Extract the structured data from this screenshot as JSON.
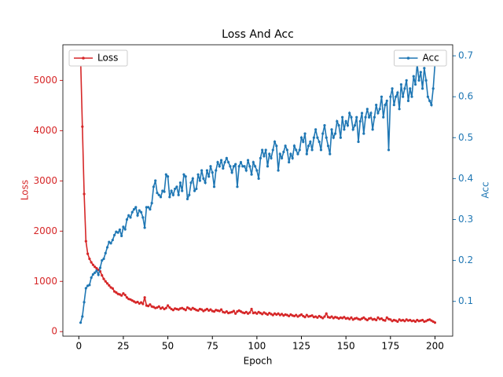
{
  "chart_data": {
    "type": "line",
    "title": "Loss And Acc",
    "x_label": "Epoch",
    "y_label": "Loss",
    "y2_label": "Acc",
    "x": [
      1,
      2,
      3,
      4,
      5,
      6,
      7,
      8,
      9,
      10,
      11,
      12,
      13,
      14,
      15,
      16,
      17,
      18,
      19,
      20,
      21,
      22,
      23,
      24,
      25,
      26,
      27,
      28,
      29,
      30,
      31,
      32,
      33,
      34,
      35,
      36,
      37,
      38,
      39,
      40,
      41,
      42,
      43,
      44,
      45,
      46,
      47,
      48,
      49,
      50,
      51,
      52,
      53,
      54,
      55,
      56,
      57,
      58,
      59,
      60,
      61,
      62,
      63,
      64,
      65,
      66,
      67,
      68,
      69,
      70,
      71,
      72,
      73,
      74,
      75,
      76,
      77,
      78,
      79,
      80,
      81,
      82,
      83,
      84,
      85,
      86,
      87,
      88,
      89,
      90,
      91,
      92,
      93,
      94,
      95,
      96,
      97,
      98,
      99,
      100,
      101,
      102,
      103,
      104,
      105,
      106,
      107,
      108,
      109,
      110,
      111,
      112,
      113,
      114,
      115,
      116,
      117,
      118,
      119,
      120,
      121,
      122,
      123,
      124,
      125,
      126,
      127,
      128,
      129,
      130,
      131,
      132,
      133,
      134,
      135,
      136,
      137,
      138,
      139,
      140,
      141,
      142,
      143,
      144,
      145,
      146,
      147,
      148,
      149,
      150,
      151,
      152,
      153,
      154,
      155,
      156,
      157,
      158,
      159,
      160,
      161,
      162,
      163,
      164,
      165,
      166,
      167,
      168,
      169,
      170,
      171,
      172,
      173,
      174,
      175,
      176,
      177,
      178,
      179,
      180,
      181,
      182,
      183,
      184,
      185,
      186,
      187,
      188,
      189,
      190,
      191,
      192,
      193,
      194,
      195,
      196,
      197,
      198,
      199,
      200
    ],
    "xlim": [
      -8.95,
      209.95
    ],
    "xticks": [
      0,
      25,
      50,
      75,
      100,
      125,
      150,
      175,
      200
    ],
    "ylim": [
      -90,
      5710
    ],
    "yticks": [
      0,
      1000,
      2000,
      3000,
      4000,
      5000
    ],
    "y2lim": [
      0.015,
      0.727
    ],
    "y2ticks": [
      0.1,
      0.2,
      0.3,
      0.4,
      0.5,
      0.6,
      0.7
    ],
    "series": [
      {
        "name": "Loss",
        "color": "#d62728",
        "legend": "upper left",
        "values": [
          5440,
          4080,
          2740,
          1800,
          1550,
          1450,
          1380,
          1330,
          1290,
          1260,
          1230,
          1200,
          1120,
          1050,
          1000,
          960,
          920,
          880,
          860,
          800,
          780,
          750,
          740,
          720,
          760,
          730,
          680,
          650,
          640,
          620,
          600,
          580,
          590,
          560,
          580,
          550,
          680,
          520,
          510,
          540,
          500,
          490,
          470,
          480,
          500,
          460,
          480,
          450,
          470,
          520,
          480,
          450,
          430,
          460,
          450,
          440,
          460,
          470,
          450,
          430,
          480,
          460,
          440,
          470,
          450,
          430,
          420,
          450,
          440,
          410,
          430,
          450,
          420,
          440,
          410,
          400,
          430,
          420,
          410,
          440,
          390,
          380,
          400,
          370,
          380,
          390,
          410,
          360,
          400,
          420,
          400,
          380,
          370,
          390,
          360,
          380,
          450,
          370,
          380,
          360,
          390,
          370,
          350,
          380,
          360,
          340,
          370,
          350,
          330,
          360,
          340,
          360,
          330,
          350,
          320,
          340,
          330,
          310,
          340,
          320,
          310,
          330,
          300,
          320,
          340,
          310,
          290,
          330,
          300,
          310,
          320,
          290,
          300,
          280,
          310,
          290,
          270,
          300,
          360,
          290,
          280,
          300,
          270,
          290,
          280,
          260,
          280,
          270,
          290,
          260,
          270,
          250,
          280,
          240,
          260,
          270,
          250,
          240,
          260,
          280,
          250,
          230,
          260,
          270,
          240,
          250,
          230,
          280,
          250,
          260,
          230,
          220,
          280,
          250,
          240,
          210,
          230,
          220,
          200,
          240,
          220,
          230,
          210,
          240,
          220,
          230,
          210,
          220,
          200,
          230,
          210,
          220,
          230,
          200,
          210,
          230,
          240,
          220,
          200,
          180
        ]
      },
      {
        "name": "Acc",
        "color": "#1f77b4",
        "axis": "y2",
        "legend": "upper right",
        "values": [
          0.048,
          0.063,
          0.098,
          0.132,
          0.138,
          0.14,
          0.158,
          0.166,
          0.17,
          0.175,
          0.165,
          0.182,
          0.2,
          0.204,
          0.218,
          0.232,
          0.245,
          0.242,
          0.25,
          0.262,
          0.27,
          0.268,
          0.275,
          0.26,
          0.282,
          0.276,
          0.3,
          0.31,
          0.305,
          0.318,
          0.325,
          0.33,
          0.31,
          0.322,
          0.318,
          0.305,
          0.28,
          0.33,
          0.33,
          0.325,
          0.34,
          0.38,
          0.395,
          0.365,
          0.36,
          0.355,
          0.37,
          0.368,
          0.41,
          0.405,
          0.355,
          0.37,
          0.36,
          0.375,
          0.38,
          0.36,
          0.39,
          0.37,
          0.41,
          0.405,
          0.35,
          0.36,
          0.39,
          0.4,
          0.37,
          0.375,
          0.41,
          0.395,
          0.42,
          0.4,
          0.39,
          0.42,
          0.405,
          0.43,
          0.415,
          0.38,
          0.42,
          0.44,
          0.43,
          0.445,
          0.425,
          0.44,
          0.45,
          0.44,
          0.43,
          0.415,
          0.43,
          0.435,
          0.38,
          0.43,
          0.44,
          0.43,
          0.43,
          0.42,
          0.445,
          0.43,
          0.41,
          0.44,
          0.43,
          0.42,
          0.4,
          0.45,
          0.47,
          0.455,
          0.47,
          0.43,
          0.46,
          0.45,
          0.47,
          0.49,
          0.48,
          0.42,
          0.46,
          0.45,
          0.465,
          0.48,
          0.47,
          0.44,
          0.46,
          0.45,
          0.48,
          0.47,
          0.46,
          0.47,
          0.5,
          0.49,
          0.51,
          0.46,
          0.48,
          0.49,
          0.47,
          0.5,
          0.52,
          0.5,
          0.49,
          0.47,
          0.51,
          0.53,
          0.5,
          0.48,
          0.46,
          0.52,
          0.5,
          0.51,
          0.54,
          0.53,
          0.5,
          0.55,
          0.52,
          0.54,
          0.53,
          0.56,
          0.55,
          0.52,
          0.53,
          0.55,
          0.49,
          0.54,
          0.56,
          0.51,
          0.55,
          0.57,
          0.55,
          0.56,
          0.52,
          0.55,
          0.58,
          0.56,
          0.57,
          0.6,
          0.55,
          0.58,
          0.59,
          0.47,
          0.6,
          0.62,
          0.58,
          0.6,
          0.61,
          0.57,
          0.63,
          0.6,
          0.62,
          0.64,
          0.59,
          0.62,
          0.6,
          0.65,
          0.63,
          0.68,
          0.64,
          0.66,
          0.62,
          0.67,
          0.64,
          0.6,
          0.59,
          0.58,
          0.62,
          0.68
        ]
      }
    ]
  }
}
